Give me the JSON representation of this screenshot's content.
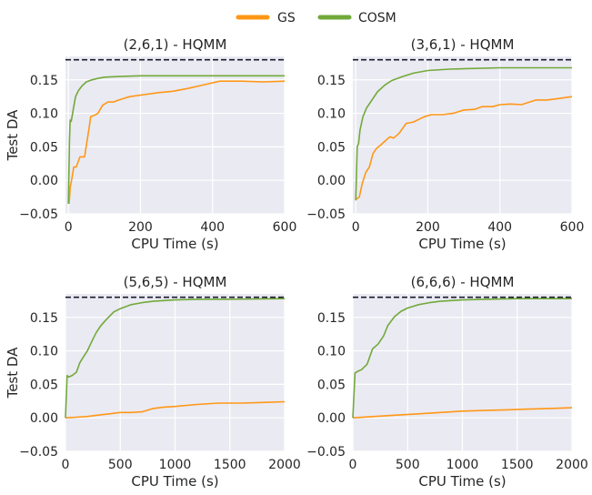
{
  "legend": [
    {
      "name": "GS",
      "color": "#ff9716"
    },
    {
      "name": "COSM",
      "color": "#72a93b"
    }
  ],
  "chart_data": [
    {
      "type": "line",
      "title": "(2,6,1) - HQMM",
      "xlabel": "CPU Time (s)",
      "ylabel": "Test DA",
      "xlim": [
        -8,
        600
      ],
      "ylim": [
        -0.05,
        0.185
      ],
      "xticks": [
        0,
        200,
        400,
        600
      ],
      "yticks": [
        -0.05,
        0.0,
        0.05,
        0.1,
        0.15
      ],
      "xtick_labels": [
        "0",
        "200",
        "400",
        "600"
      ],
      "ytick_labels": [
        "−0.05",
        "0.00",
        "0.05",
        "0.10",
        "0.15"
      ],
      "reference_line": 0.18,
      "series": [
        {
          "name": "GS",
          "x": [
            2,
            5,
            9,
            15,
            22,
            32,
            45,
            58,
            62,
            72,
            82,
            95,
            110,
            125,
            140,
            170,
            210,
            250,
            290,
            330,
            380,
            420,
            480,
            540,
            600
          ],
          "y": [
            -0.035,
            -0.01,
            0.0,
            0.02,
            0.02,
            0.035,
            0.035,
            0.08,
            0.095,
            0.097,
            0.1,
            0.112,
            0.117,
            0.117,
            0.12,
            0.125,
            0.128,
            0.131,
            0.133,
            0.137,
            0.143,
            0.148,
            0.148,
            0.147,
            0.148
          ]
        },
        {
          "name": "COSM",
          "x": [
            0,
            3,
            5,
            8,
            10,
            15,
            20,
            28,
            38,
            50,
            65,
            80,
            100,
            140,
            200,
            300,
            400,
            500,
            600
          ],
          "y": [
            -0.035,
            0.06,
            0.09,
            0.088,
            0.094,
            0.11,
            0.125,
            0.134,
            0.141,
            0.147,
            0.15,
            0.152,
            0.154,
            0.155,
            0.156,
            0.156,
            0.156,
            0.156,
            0.156
          ]
        }
      ]
    },
    {
      "type": "line",
      "title": "(3,6,1) - HQMM",
      "xlabel": "CPU Time (s)",
      "ylabel": "",
      "xlim": [
        -8,
        600
      ],
      "ylim": [
        -0.05,
        0.185
      ],
      "xticks": [
        0,
        200,
        400,
        600
      ],
      "yticks": [
        -0.05,
        0.0,
        0.05,
        0.1,
        0.15
      ],
      "xtick_labels": [
        "0",
        "200",
        "400",
        "600"
      ],
      "ytick_labels": [
        "−0.05",
        "0.00",
        "0.05",
        "0.10",
        "0.15"
      ],
      "reference_line": 0.18,
      "series": [
        {
          "name": "GS",
          "x": [
            2,
            10,
            18,
            28,
            38,
            48,
            58,
            68,
            80,
            95,
            105,
            120,
            140,
            160,
            190,
            210,
            240,
            270,
            300,
            330,
            350,
            380,
            400,
            430,
            460,
            500,
            530,
            560,
            600
          ],
          "y": [
            -0.028,
            -0.025,
            -0.005,
            0.012,
            0.02,
            0.04,
            0.048,
            0.052,
            0.058,
            0.065,
            0.063,
            0.07,
            0.085,
            0.087,
            0.095,
            0.098,
            0.098,
            0.1,
            0.105,
            0.106,
            0.11,
            0.11,
            0.113,
            0.114,
            0.113,
            0.12,
            0.12,
            0.122,
            0.125
          ]
        },
        {
          "name": "COSM",
          "x": [
            0,
            4,
            8,
            12,
            20,
            30,
            45,
            60,
            80,
            100,
            130,
            160,
            200,
            260,
            320,
            400,
            500,
            600
          ],
          "y": [
            -0.03,
            0.05,
            0.055,
            0.075,
            0.095,
            0.108,
            0.12,
            0.132,
            0.142,
            0.149,
            0.155,
            0.16,
            0.164,
            0.166,
            0.167,
            0.168,
            0.168,
            0.168
          ]
        }
      ]
    },
    {
      "type": "line",
      "title": "(5,6,5) - HQMM",
      "xlabel": "CPU Time (s)",
      "ylabel": "Test DA",
      "xlim": [
        0,
        2000
      ],
      "ylim": [
        -0.05,
        0.185
      ],
      "xticks": [
        0,
        500,
        1000,
        1500,
        2000
      ],
      "yticks": [
        -0.05,
        0.0,
        0.05,
        0.1,
        0.15
      ],
      "xtick_labels": [
        "0",
        "500",
        "1000",
        "1500",
        "2000"
      ],
      "ytick_labels": [
        "−0.05",
        "0.00",
        "0.05",
        "0.10",
        "0.15"
      ],
      "reference_line": 0.18,
      "series": [
        {
          "name": "GS",
          "x": [
            0,
            100,
            200,
            300,
            400,
            500,
            600,
            700,
            800,
            900,
            1000,
            1200,
            1400,
            1600,
            1800,
            2000
          ],
          "y": [
            0.0,
            0.001,
            0.002,
            0.004,
            0.006,
            0.008,
            0.008,
            0.009,
            0.014,
            0.016,
            0.017,
            0.02,
            0.022,
            0.022,
            0.023,
            0.024
          ]
        },
        {
          "name": "COSM",
          "x": [
            0,
            15,
            30,
            60,
            100,
            130,
            160,
            200,
            240,
            280,
            320,
            380,
            440,
            500,
            600,
            700,
            800,
            1000,
            1200,
            1500,
            2000
          ],
          "y": [
            0.0,
            0.063,
            0.061,
            0.063,
            0.068,
            0.082,
            0.09,
            0.1,
            0.114,
            0.127,
            0.137,
            0.148,
            0.158,
            0.163,
            0.169,
            0.172,
            0.174,
            0.176,
            0.177,
            0.177,
            0.178
          ]
        }
      ]
    },
    {
      "type": "line",
      "title": "(6,6,6) - HQMM",
      "xlabel": "CPU Time (s)",
      "ylabel": "",
      "xlim": [
        0,
        2000
      ],
      "ylim": [
        -0.05,
        0.185
      ],
      "xticks": [
        0,
        500,
        1000,
        1500,
        2000
      ],
      "yticks": [
        -0.05,
        0.0,
        0.05,
        0.1,
        0.15
      ],
      "xtick_labels": [
        "0",
        "500",
        "1000",
        "1500",
        "2000"
      ],
      "ytick_labels": [
        "−0.05",
        "0.00",
        "0.05",
        "0.10",
        "0.15"
      ],
      "reference_line": 0.18,
      "series": [
        {
          "name": "GS",
          "x": [
            0,
            200,
            400,
            600,
            800,
            1000,
            1200,
            1400,
            1600,
            1800,
            2000
          ],
          "y": [
            0.0,
            0.002,
            0.004,
            0.006,
            0.008,
            0.01,
            0.011,
            0.012,
            0.013,
            0.014,
            0.015
          ]
        },
        {
          "name": "COSM",
          "x": [
            0,
            20,
            40,
            80,
            130,
            180,
            230,
            280,
            320,
            380,
            440,
            500,
            600,
            700,
            800,
            1000,
            1200,
            1500,
            2000
          ],
          "y": [
            0.0,
            0.067,
            0.069,
            0.072,
            0.08,
            0.103,
            0.11,
            0.122,
            0.138,
            0.151,
            0.159,
            0.164,
            0.169,
            0.172,
            0.174,
            0.176,
            0.177,
            0.178,
            0.178
          ]
        }
      ]
    }
  ]
}
